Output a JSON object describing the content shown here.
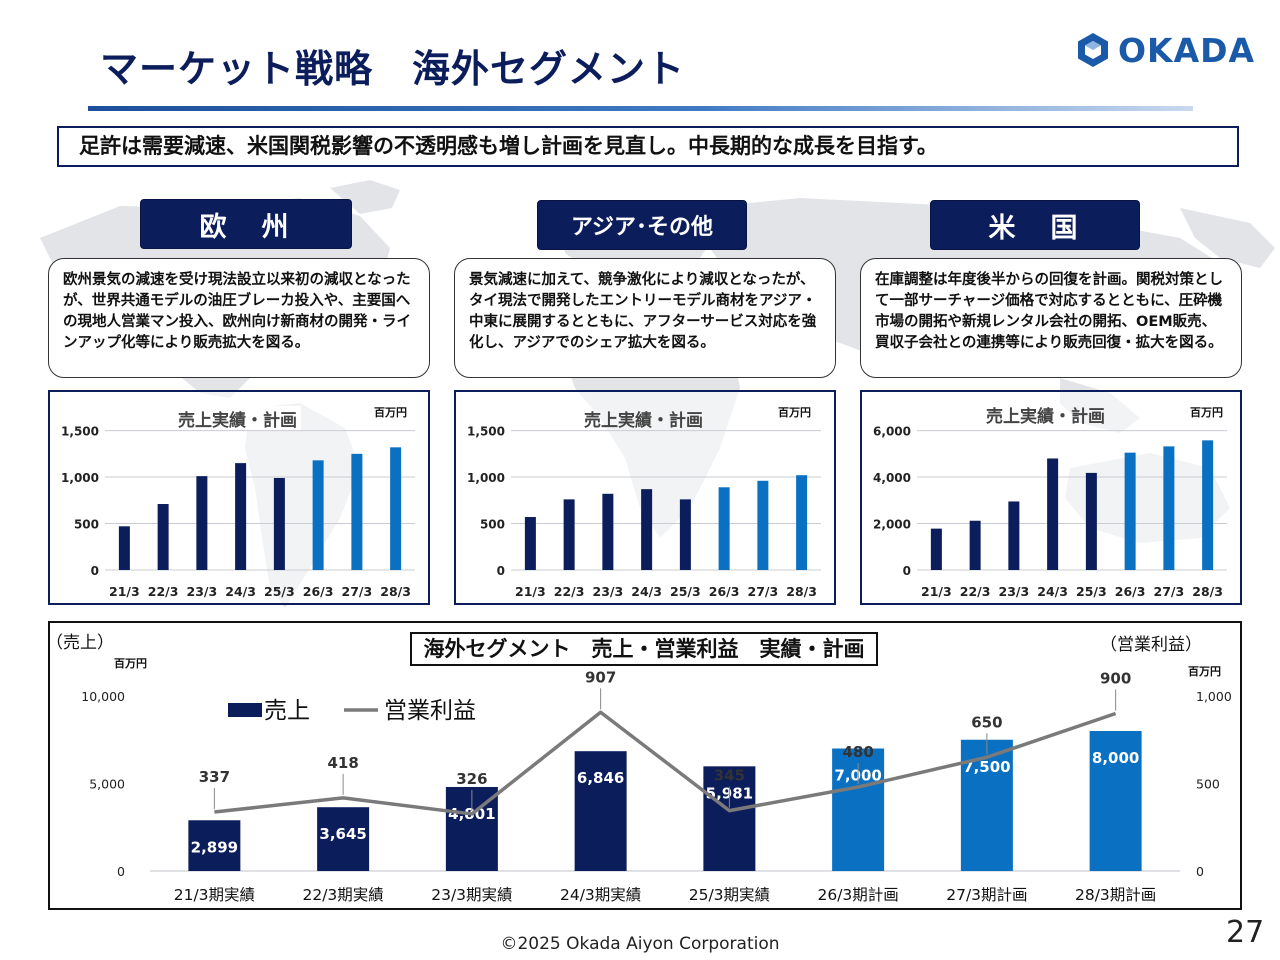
{
  "slide": {
    "title": "マーケット戦略　海外セグメント",
    "lead": "足許は需要減速、米国関税影響の不透明感も増し計画を見直し。中長期的な成長を目指す。",
    "logo_text": "OKADA",
    "footer": "©2025 Okada Aiyon Corporation",
    "page_number": "27"
  },
  "colors": {
    "navy": "#0c1d5c",
    "actual_bar": "#0c1d5c",
    "plan_bar": "#0a70c2",
    "profit_line": "#7a7a7a",
    "logo_blue": "#1b5aa8"
  },
  "regions": [
    {
      "label": "欧　州",
      "text": "欧州景気の減速を受け現法設立以来初の減収となったが、世界共通モデルの油圧ブレーカ投入や、主要国への現地人営業マン投入、欧州向け新商材の開発・ラインアップ化等により販売拡大を図る。"
    },
    {
      "label": "アジア･その他",
      "text": "景気減速に加えて、競争激化により減収となったが、タイ現法で開発したエントリーモデル商材をアジア・中東に展開するとともに、アフターサービス対応を強化し、アジアでのシェア拡大を図る。"
    },
    {
      "label": "米　国",
      "text": "在庫調整は年度後半からの回復を計画。関税対策として一部サーチャージ価格で対応するとともに、圧砕機市場の開拓や新規レンタル会社の開拓、OEM販売、買収子会社との連携等により販売回復・拡大を図る。"
    }
  ],
  "chart_data": [
    {
      "type": "bar",
      "title": "売上実績・計画",
      "unit": "百万円",
      "categories": [
        "21/3",
        "22/3",
        "23/3",
        "24/3",
        "25/3",
        "26/3",
        "27/3",
        "28/3"
      ],
      "values": [
        470,
        710,
        1010,
        1150,
        990,
        1180,
        1250,
        1320
      ],
      "plan_from_index": 5,
      "ylim": [
        0,
        1700
      ],
      "yticks": [
        0,
        500,
        1000,
        1500
      ],
      "ytick_labels": [
        "0",
        "500",
        "1,000",
        "1,500"
      ]
    },
    {
      "type": "bar",
      "title": "売上実績・計画",
      "unit": "百万円",
      "categories": [
        "21/3",
        "22/3",
        "23/3",
        "24/3",
        "25/3",
        "26/3",
        "27/3",
        "28/3"
      ],
      "values": [
        570,
        760,
        820,
        870,
        760,
        890,
        960,
        1020
      ],
      "plan_from_index": 5,
      "ylim": [
        0,
        1700
      ],
      "yticks": [
        0,
        500,
        1000,
        1500
      ],
      "ytick_labels": [
        "0",
        "500",
        "1,000",
        "1,500"
      ]
    },
    {
      "type": "bar",
      "title": "売上実績・計画",
      "unit": "百万円",
      "categories": [
        "21/3",
        "22/3",
        "23/3",
        "24/3",
        "25/3",
        "26/3",
        "27/3",
        "28/3"
      ],
      "values": [
        1780,
        2120,
        2950,
        4800,
        4180,
        5050,
        5320,
        5580
      ],
      "plan_from_index": 5,
      "ylim": [
        0,
        6800
      ],
      "yticks": [
        0,
        2000,
        4000,
        6000
      ],
      "ytick_labels": [
        "0",
        "2,000",
        "4,000",
        "6,000"
      ]
    },
    {
      "type": "bar+line",
      "title": "海外セグメント　売上・営業利益　実績・計画",
      "left_axis_label": "（売上）",
      "right_axis_label": "（営業利益）",
      "left_unit": "百万円",
      "right_unit": "百万円",
      "categories": [
        "21/3期実績",
        "22/3期実績",
        "23/3期実績",
        "24/3期実績",
        "25/3期実績",
        "26/3期計画",
        "27/3期計画",
        "28/3期計画"
      ],
      "series": [
        {
          "name": "売上",
          "kind": "bar",
          "axis": "left",
          "values": [
            2899,
            3645,
            4801,
            6846,
            5981,
            7000,
            7500,
            8000
          ],
          "labels": [
            "2,899",
            "3,645",
            "4,801",
            "6,846",
            "5,981",
            "7,000",
            "7,500",
            "8,000"
          ]
        },
        {
          "name": "営業利益",
          "kind": "line",
          "axis": "right",
          "values": [
            337,
            418,
            326,
            907,
            345,
            480,
            650,
            900
          ],
          "labels": [
            "337",
            "418",
            "326",
            "907",
            "345",
            "480",
            "650",
            "900"
          ]
        }
      ],
      "plan_from_index": 5,
      "left_ylim": [
        0,
        10000
      ],
      "left_yticks": [
        0,
        5000,
        10000
      ],
      "left_ytick_labels": [
        "0",
        "5,000",
        "10,000"
      ],
      "right_ylim": [
        0,
        1000
      ],
      "right_yticks": [
        0,
        500,
        1000
      ],
      "right_ytick_labels": [
        "0",
        "500",
        "1,000"
      ],
      "legend_position": "top-left"
    }
  ]
}
